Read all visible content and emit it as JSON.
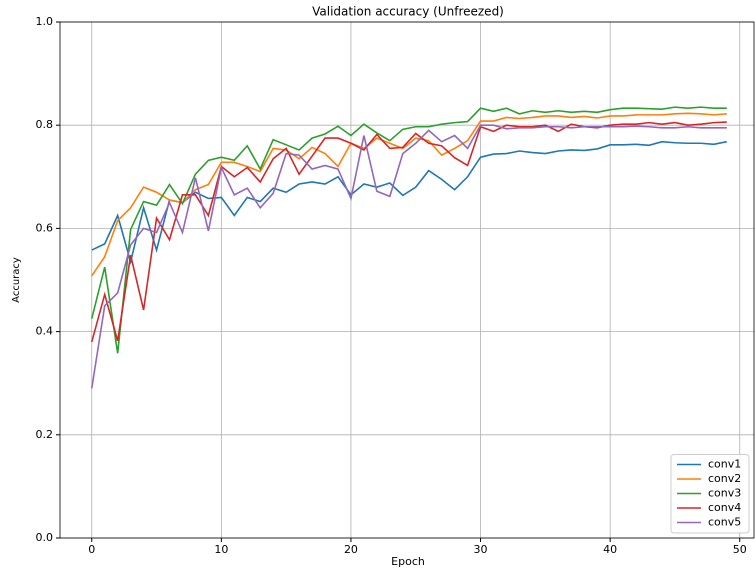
{
  "chart_data": {
    "type": "line",
    "title": "Validation accuracy (Unfreezed)",
    "x_label": "Epoch",
    "y_label": "Accuracy",
    "x": [
      0,
      1,
      2,
      3,
      4,
      5,
      6,
      7,
      8,
      9,
      10,
      11,
      12,
      13,
      14,
      15,
      16,
      17,
      18,
      19,
      20,
      21,
      22,
      23,
      24,
      25,
      26,
      27,
      28,
      29,
      30,
      31,
      32,
      33,
      34,
      35,
      36,
      37,
      38,
      39,
      40,
      41,
      42,
      43,
      44,
      45,
      46,
      47,
      48,
      49
    ],
    "xlim": [
      -2.45,
      51.1
    ],
    "xticks": [
      0,
      10,
      20,
      30,
      40,
      50
    ],
    "ylim": [
      0,
      1
    ],
    "yticks": [
      {
        "value": 0,
        "label": "0.0"
      },
      0.2,
      0.4,
      0.6,
      0.8,
      {
        "value": 1,
        "label": "1.0"
      }
    ],
    "grid": true,
    "legend": "lower right",
    "series": [
      {
        "name": "conv1",
        "color": "#1f77b4",
        "values": [
          0.558,
          0.57,
          0.625,
          0.535,
          0.64,
          0.558,
          0.655,
          0.65,
          0.67,
          0.658,
          0.66,
          0.625,
          0.66,
          0.652,
          0.678,
          0.67,
          0.686,
          0.69,
          0.686,
          0.7,
          0.665,
          0.686,
          0.68,
          0.688,
          0.664,
          0.68,
          0.712,
          0.695,
          0.675,
          0.7,
          0.738,
          0.744,
          0.745,
          0.75,
          0.747,
          0.745,
          0.75,
          0.752,
          0.751,
          0.754,
          0.762,
          0.762,
          0.763,
          0.761,
          0.768,
          0.766,
          0.765,
          0.765,
          0.763,
          0.768
        ]
      },
      {
        "name": "conv2",
        "color": "#ff7f0e",
        "values": [
          0.508,
          0.545,
          0.615,
          0.64,
          0.68,
          0.67,
          0.655,
          0.65,
          0.675,
          0.685,
          0.728,
          0.728,
          0.72,
          0.71,
          0.755,
          0.752,
          0.735,
          0.757,
          0.745,
          0.72,
          0.765,
          0.755,
          0.775,
          0.765,
          0.755,
          0.775,
          0.77,
          0.742,
          0.755,
          0.77,
          0.808,
          0.808,
          0.815,
          0.813,
          0.815,
          0.818,
          0.818,
          0.815,
          0.817,
          0.814,
          0.818,
          0.818,
          0.82,
          0.82,
          0.82,
          0.822,
          0.823,
          0.822,
          0.82,
          0.822
        ]
      },
      {
        "name": "conv3",
        "color": "#2ca02c",
        "values": [
          0.425,
          0.525,
          0.358,
          0.598,
          0.652,
          0.645,
          0.685,
          0.648,
          0.705,
          0.732,
          0.738,
          0.732,
          0.76,
          0.715,
          0.772,
          0.762,
          0.752,
          0.775,
          0.783,
          0.798,
          0.78,
          0.802,
          0.785,
          0.77,
          0.792,
          0.797,
          0.797,
          0.802,
          0.805,
          0.807,
          0.833,
          0.827,
          0.833,
          0.822,
          0.828,
          0.825,
          0.828,
          0.825,
          0.827,
          0.825,
          0.83,
          0.833,
          0.833,
          0.832,
          0.831,
          0.835,
          0.833,
          0.835,
          0.833,
          0.833
        ]
      },
      {
        "name": "conv4",
        "color": "#d62728",
        "values": [
          0.38,
          0.472,
          0.382,
          0.548,
          0.442,
          0.62,
          0.578,
          0.665,
          0.665,
          0.625,
          0.72,
          0.7,
          0.718,
          0.69,
          0.735,
          0.755,
          0.705,
          0.74,
          0.775,
          0.775,
          0.765,
          0.752,
          0.782,
          0.755,
          0.757,
          0.784,
          0.765,
          0.76,
          0.737,
          0.722,
          0.797,
          0.788,
          0.8,
          0.797,
          0.797,
          0.8,
          0.788,
          0.802,
          0.797,
          0.795,
          0.8,
          0.802,
          0.802,
          0.805,
          0.802,
          0.805,
          0.8,
          0.802,
          0.805,
          0.806
        ]
      },
      {
        "name": "conv5",
        "color": "#9467bd",
        "values": [
          0.29,
          0.45,
          0.475,
          0.568,
          0.6,
          0.592,
          0.65,
          0.592,
          0.698,
          0.595,
          0.718,
          0.665,
          0.678,
          0.64,
          0.668,
          0.745,
          0.742,
          0.715,
          0.722,
          0.715,
          0.658,
          0.78,
          0.672,
          0.662,
          0.745,
          0.765,
          0.79,
          0.768,
          0.78,
          0.755,
          0.8,
          0.8,
          0.793,
          0.795,
          0.795,
          0.797,
          0.797,
          0.795,
          0.797,
          0.797,
          0.797,
          0.797,
          0.798,
          0.797,
          0.795,
          0.795,
          0.797,
          0.795,
          0.795,
          0.795
        ]
      }
    ]
  }
}
